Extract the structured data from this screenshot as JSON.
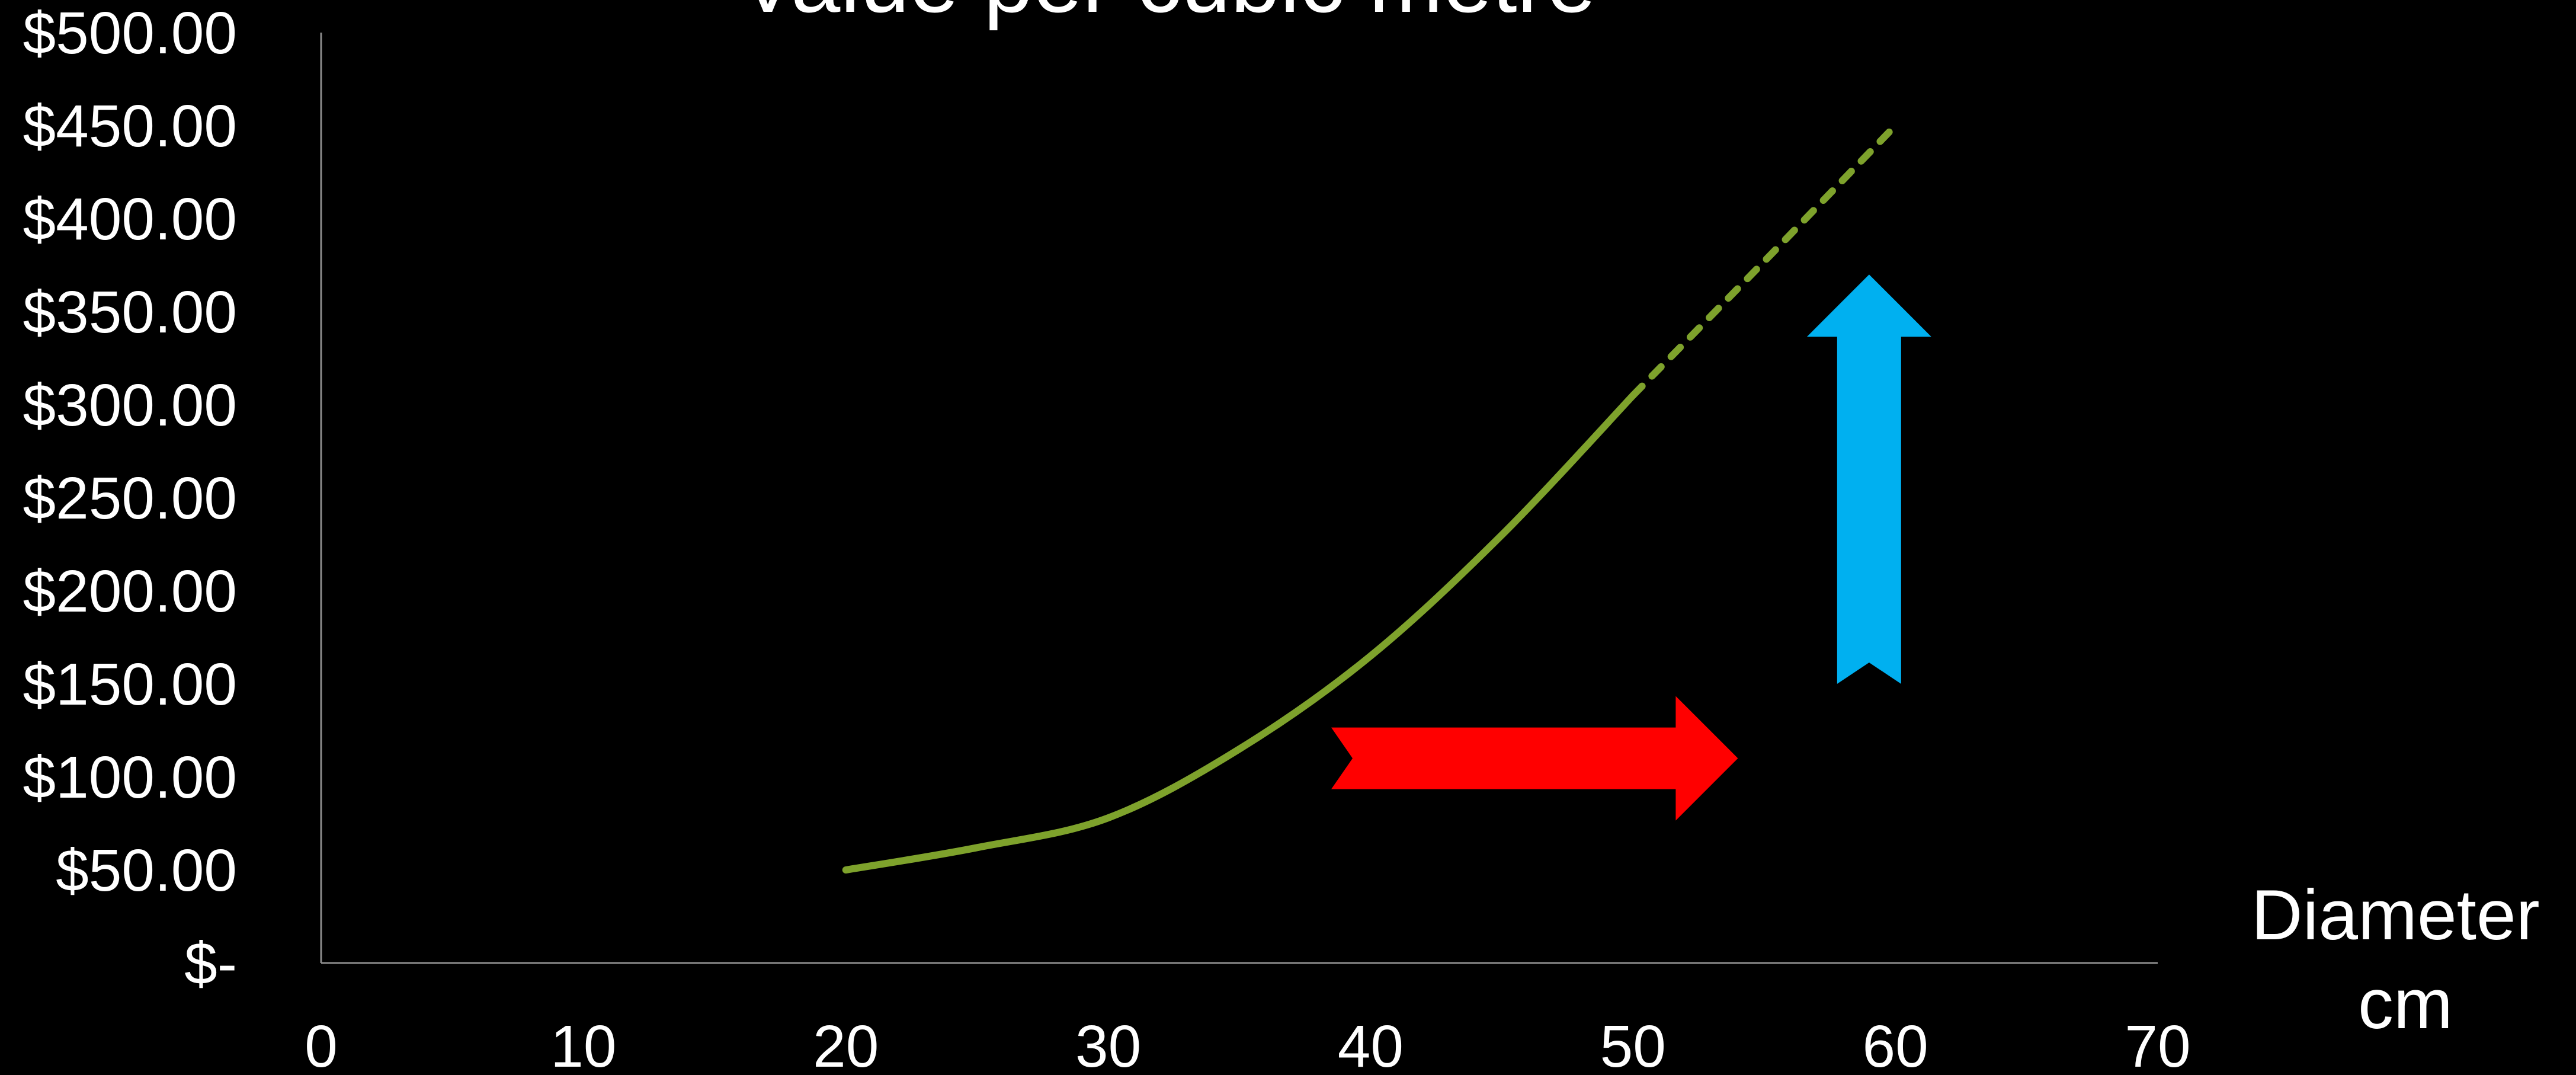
{
  "chart_data": {
    "type": "line",
    "title": "Value per cubic metre",
    "xlabel": [
      "Diameter",
      "cm"
    ],
    "ylabel": "",
    "xlim": [
      0,
      70
    ],
    "ylim": [
      0,
      500
    ],
    "x_ticks": [
      "0",
      "10",
      "20",
      "30",
      "40",
      "50",
      "60",
      "70"
    ],
    "y_ticks": [
      "$-",
      "$50.00",
      "$100.00",
      "$150.00",
      "$200.00",
      "$250.00",
      "$300.00",
      "$350.00",
      "$400.00",
      "$450.00",
      "$500.00"
    ],
    "grid": false,
    "series": [
      {
        "x": [
          20,
          25,
          30,
          35,
          40,
          45,
          50
        ],
        "y": [
          50,
          62,
          78,
          115,
          165,
          230,
          305
        ],
        "color": "#7ea22c",
        "style": "solid"
      },
      {
        "x": [
          50,
          55,
          60
        ],
        "y": [
          305,
          377,
          450
        ],
        "color": "#7ea22c",
        "style": "dashed"
      }
    ],
    "annotations": [
      {
        "type": "arrow",
        "direction": "right",
        "color": "#ff0000",
        "x": [
          38.5,
          54
        ],
        "y": 110
      },
      {
        "type": "arrow",
        "direction": "up",
        "color": "#00b0f0",
        "x": 59,
        "y": [
          150,
          370
        ]
      }
    ]
  }
}
